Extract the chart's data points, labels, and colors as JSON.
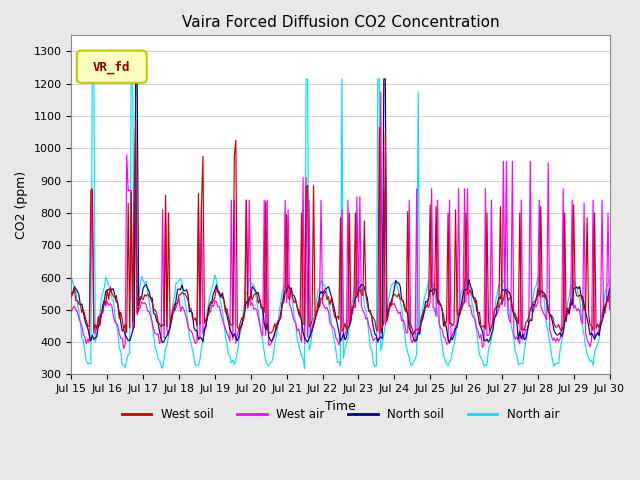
{
  "title": "Vaira Forced Diffusion CO2 Concentration",
  "xlabel": "Time",
  "ylabel": "CO2 (ppm)",
  "ylim": [
    300,
    1350
  ],
  "bg_color": "#ffffff",
  "fig_color": "#e8e8e8",
  "series": {
    "west_soil": {
      "color": "#cc0000",
      "label": "West soil"
    },
    "west_air": {
      "color": "#ff00ff",
      "label": "West air"
    },
    "north_soil": {
      "color": "#00008b",
      "label": "North soil"
    },
    "north_air": {
      "color": "#00e0ff",
      "label": "North air"
    }
  },
  "xtick_labels": [
    "Jul 15",
    "Jul 16",
    "Jul 17",
    "Jul 18",
    "Jul 19",
    "Jul 20",
    "Jul 21",
    "Jul 22",
    "Jul 23",
    "Jul 24",
    "Jul 25",
    "Jul 26",
    "Jul 27",
    "Jul 28",
    "Jul 29",
    "Jul 30"
  ],
  "yticks": [
    300,
    400,
    500,
    600,
    700,
    800,
    900,
    1000,
    1100,
    1200,
    1300
  ]
}
